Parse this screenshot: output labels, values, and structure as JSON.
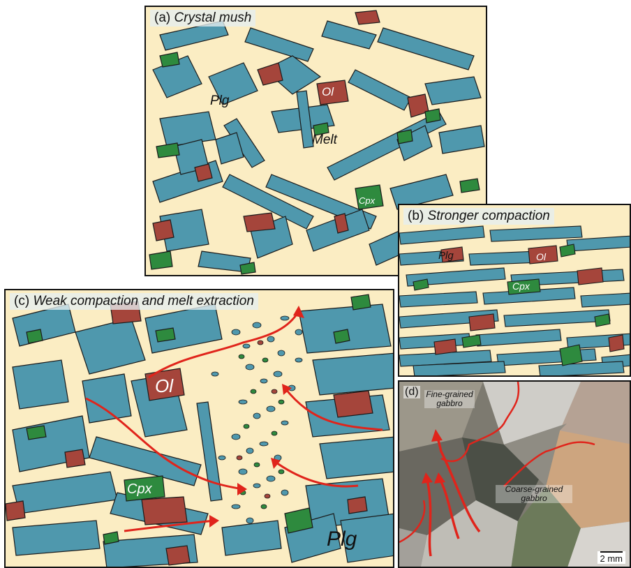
{
  "panel_a": {
    "letter": "(a)",
    "title": "Crystal mush",
    "labels": {
      "plg": "Plg",
      "ol": "Ol",
      "melt": "Melt",
      "cpx": "Cpx"
    }
  },
  "panel_b": {
    "letter": "(b)",
    "title": "Stronger compaction",
    "labels": {
      "plg": "Plg",
      "ol": "Ol",
      "cpx": "Cpx"
    }
  },
  "panel_c": {
    "letter": "(c)",
    "title": "Weak compaction and melt extraction",
    "labels": {
      "ol": "Ol",
      "cpx": "Cpx",
      "plg": "Plg"
    }
  },
  "panel_d": {
    "letter": "(d)",
    "fine": "Fine-grained gabbro",
    "coarse": "Coarse-grained gabbro",
    "scale": "2 mm"
  },
  "colors": {
    "melt": "#fbedc3",
    "plagioclase": "#4f98ad",
    "olivine": "#a5453b",
    "clinopyroxene": "#2e8a3e",
    "flow_arrow": "#e0241b"
  }
}
